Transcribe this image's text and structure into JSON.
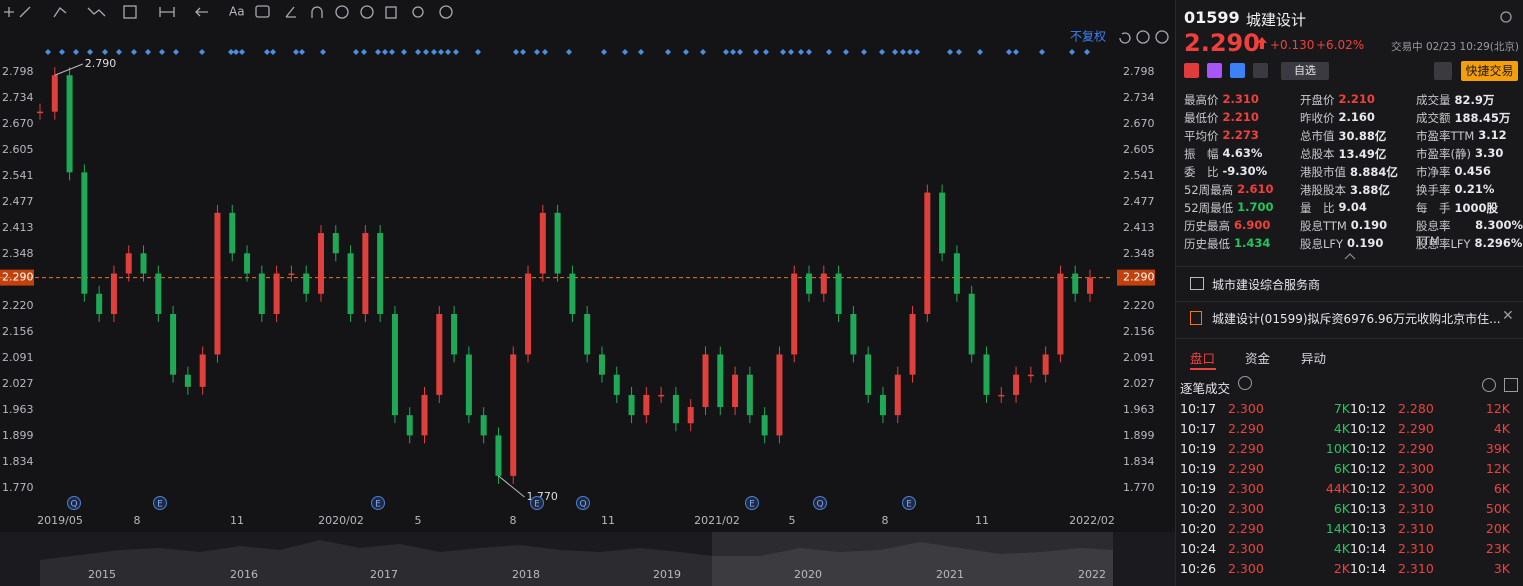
{
  "toolbar": {
    "font_tool": "Aa"
  },
  "chart": {
    "adjust_label": "不复权",
    "yticks": [
      2.798,
      2.734,
      {
        "value": 2.67,
        "label": "2.670"
      },
      2.605,
      2.541,
      2.477,
      2.413,
      2.348,
      {
        "value": 2.29,
        "label": "2.290"
      },
      {
        "value": 2.22,
        "label": "2.220"
      },
      2.156,
      2.091,
      2.027,
      1.963,
      1.899,
      1.834,
      {
        "value": 1.77,
        "label": "1.770"
      }
    ],
    "current_tick": 8,
    "high_note": "2.790",
    "low_note": "1.770",
    "xlabels": [
      "2019/05",
      "8",
      "11",
      "2020/02",
      "5",
      "8",
      "11",
      "2021/02",
      "5",
      "8",
      "11",
      "2022/02"
    ],
    "year_labels": [
      "2015",
      "2016",
      "2017",
      "2018",
      "2019",
      "2020",
      "2021",
      "2022"
    ],
    "events": [
      "Q",
      "E",
      "E",
      "E",
      "Q",
      "E",
      "Q",
      "E"
    ],
    "closes": [
      2.7,
      2.79,
      2.55,
      2.25,
      2.2,
      2.3,
      2.35,
      2.3,
      2.2,
      2.05,
      2.02,
      2.1,
      2.45,
      2.35,
      2.3,
      2.2,
      2.3,
      2.3,
      2.25,
      2.4,
      2.35,
      2.2,
      2.4,
      2.2,
      1.95,
      1.9,
      2.0,
      2.2,
      2.1,
      1.95,
      1.9,
      1.8,
      2.1,
      2.3,
      2.45,
      2.3,
      2.2,
      2.1,
      2.05,
      2.0,
      1.95,
      2.0,
      2.0,
      1.93,
      1.97,
      2.1,
      1.97,
      2.05,
      1.95,
      1.9,
      2.1,
      2.3,
      2.25,
      2.3,
      2.2,
      2.1,
      2.0,
      1.95,
      2.05,
      2.2,
      2.5,
      2.35,
      2.25,
      2.1,
      2.0,
      2.0,
      2.05,
      2.05,
      2.1,
      2.3,
      2.25,
      2.29
    ]
  },
  "quote": {
    "code": "01599",
    "name": "城建设计",
    "price": "2.290",
    "change": "+0.130",
    "change_pct": "+6.02%",
    "status": "交易中 02/23 10:29(北京)",
    "watch_button": "自选",
    "trade_button": "快捷交易",
    "stats": [
      {
        "label": "最高价",
        "value": "2.310",
        "color": "#f0403c"
      },
      {
        "label": "开盘价",
        "value": "2.210",
        "color": "#f0403c"
      },
      {
        "label": "成交量",
        "value": "82.9万",
        "color": "#e8e8ec"
      },
      {
        "label": "最低价",
        "value": "2.210",
        "color": "#f0403c"
      },
      {
        "label": "昨收价",
        "value": "2.160",
        "color": "#e8e8ec"
      },
      {
        "label": "成交额",
        "value": "188.45万",
        "color": "#e8e8ec"
      },
      {
        "label": "平均价",
        "value": "2.273",
        "color": "#f0403c"
      },
      {
        "label": "总市值",
        "value": "30.88亿",
        "color": "#e8e8ec"
      },
      {
        "label": "市盈率TTM",
        "value": "3.12",
        "color": "#e8e8ec"
      },
      {
        "label": "振　幅",
        "value": "4.63%",
        "color": "#e8e8ec"
      },
      {
        "label": "总股本",
        "value": "13.49亿",
        "color": "#e8e8ec"
      },
      {
        "label": "市盈率(静)",
        "value": "3.30",
        "color": "#e8e8ec"
      },
      {
        "label": "委　比",
        "value": "-9.30%",
        "color": "#e8e8ec"
      },
      {
        "label": "港股市值",
        "value": "8.884亿",
        "color": "#e8e8ec"
      },
      {
        "label": "市净率",
        "value": "0.456",
        "color": "#e8e8ec"
      },
      {
        "label": "52周最高",
        "value": "2.610",
        "color": "#f0403c"
      },
      {
        "label": "港股股本",
        "value": "3.88亿",
        "color": "#e8e8ec"
      },
      {
        "label": "换手率",
        "value": "0.21%",
        "color": "#e8e8ec"
      },
      {
        "label": "52周最低",
        "value": "1.700",
        "color": "#22c55e"
      },
      {
        "label": "量　比",
        "value": "9.04",
        "color": "#e8e8ec"
      },
      {
        "label": "每　手",
        "value": "1000股",
        "color": "#e8e8ec"
      },
      {
        "label": "历史最高",
        "value": "6.900",
        "color": "#f0403c"
      },
      {
        "label": "股息TTM",
        "value": "0.190",
        "color": "#e8e8ec"
      },
      {
        "label": "股息率TTM",
        "value": "8.300%",
        "color": "#e8e8ec"
      },
      {
        "label": "历史最低",
        "value": "1.434",
        "color": "#22c55e"
      },
      {
        "label": "股息LFY",
        "value": "0.190",
        "color": "#e8e8ec"
      },
      {
        "label": "股息率LFY",
        "value": "8.296%",
        "color": "#e8e8ec"
      }
    ],
    "profile": "城市建设综合服务商",
    "news": "城建设计(01599)拟斥资6976.96万元收购北京市住..."
  },
  "tabs": [
    "盘口",
    "资金",
    "异动"
  ],
  "ticks_title": "逐笔成交",
  "trades": [
    [
      {
        "time": "10:17",
        "price": "2.300",
        "volume": "7K",
        "vcolor": "#22c55e"
      },
      {
        "time": "10:12",
        "price": "2.280",
        "volume": "12K",
        "vcolor": "#f0403c"
      }
    ],
    [
      {
        "time": "10:17",
        "price": "2.290",
        "volume": "4K",
        "vcolor": "#22c55e"
      },
      {
        "time": "10:12",
        "price": "2.290",
        "volume": "4K",
        "vcolor": "#f0403c"
      }
    ],
    [
      {
        "time": "10:19",
        "price": "2.290",
        "volume": "10K",
        "vcolor": "#22c55e"
      },
      {
        "time": "10:12",
        "price": "2.290",
        "volume": "39K",
        "vcolor": "#f0403c"
      }
    ],
    [
      {
        "time": "10:19",
        "price": "2.290",
        "volume": "6K",
        "vcolor": "#22c55e"
      },
      {
        "time": "10:12",
        "price": "2.300",
        "volume": "12K",
        "vcolor": "#f0403c"
      }
    ],
    [
      {
        "time": "10:19",
        "price": "2.300",
        "volume": "44K",
        "vcolor": "#f0403c"
      },
      {
        "time": "10:12",
        "price": "2.300",
        "volume": "6K",
        "vcolor": "#f0403c"
      }
    ],
    [
      {
        "time": "10:20",
        "price": "2.300",
        "volume": "6K",
        "vcolor": "#22c55e"
      },
      {
        "time": "10:13",
        "price": "2.310",
        "volume": "50K",
        "vcolor": "#f0403c"
      }
    ],
    [
      {
        "time": "10:20",
        "price": "2.290",
        "volume": "14K",
        "vcolor": "#22c55e"
      },
      {
        "time": "10:13",
        "price": "2.310",
        "volume": "20K",
        "vcolor": "#f0403c"
      }
    ],
    [
      {
        "time": "10:24",
        "price": "2.300",
        "volume": "4K",
        "vcolor": "#22c55e"
      },
      {
        "time": "10:14",
        "price": "2.310",
        "volume": "23K",
        "vcolor": "#f0403c"
      }
    ],
    [
      {
        "time": "10:26",
        "price": "2.300",
        "volume": "2K",
        "vcolor": "#f0403c"
      },
      {
        "time": "10:14",
        "price": "2.310",
        "volume": "3K",
        "vcolor": "#f0403c"
      }
    ]
  ]
}
